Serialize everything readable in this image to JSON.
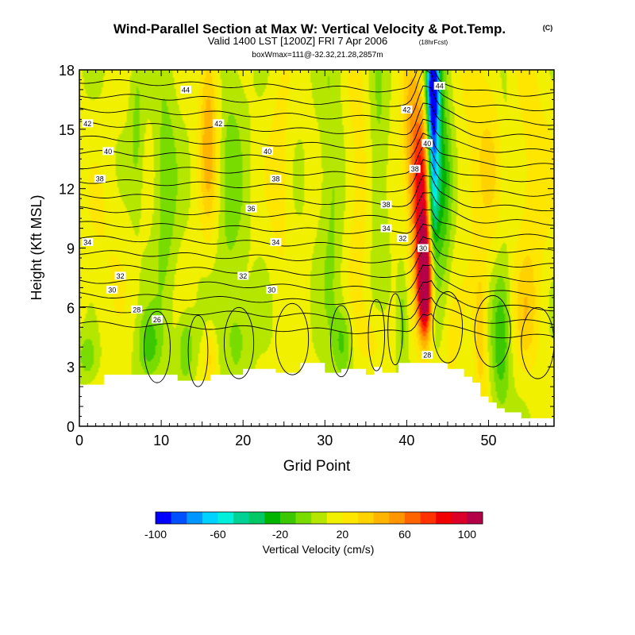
{
  "header": {
    "title": "Wind-Parallel Section at Max W: Vertical Velocity & Pot.Temp.",
    "title_mark": "(C)",
    "valid": "Valid 1400 LST [1200Z] FRI 7 Apr 2006",
    "fcst": "(18hrFcst)",
    "box_line": "boxWmax=111@-32.32,21.28,2857m"
  },
  "chart_data": {
    "type": "heatmap",
    "title": "Wind-Parallel Section at Max W: Vertical Velocity & Pot.Temp.",
    "xlabel": "Grid Point",
    "ylabel": "Height (Kft MSL)",
    "xlim": [
      0,
      58
    ],
    "ylim": [
      0,
      18
    ],
    "x_ticks": [
      0,
      10,
      20,
      30,
      40,
      50
    ],
    "y_ticks": [
      0,
      3,
      6,
      9,
      12,
      15,
      18
    ],
    "colorbar": {
      "label": "Vertical Velocity (cm/s)",
      "tick_labels": [
        "-100",
        "-60",
        "-20",
        "20",
        "60",
        "100"
      ],
      "tick_values": [
        -100,
        -60,
        -20,
        20,
        60,
        100
      ],
      "range": [
        -100,
        110
      ],
      "colors": [
        "#0000ff",
        "#0050ff",
        "#0096ff",
        "#00d2ff",
        "#00f0dc",
        "#00d296",
        "#00c864",
        "#00b400",
        "#3cc800",
        "#78dc00",
        "#b4e600",
        "#f0f000",
        "#ffe600",
        "#ffd200",
        "#ffb400",
        "#ff9600",
        "#ff6400",
        "#ff3200",
        "#f00000",
        "#dc0028",
        "#b40046"
      ]
    },
    "terrain": [
      [
        0,
        2.1
      ],
      [
        3,
        2.1
      ],
      [
        3,
        2.6
      ],
      [
        12,
        2.6
      ],
      [
        12,
        2.3
      ],
      [
        16,
        2.3
      ],
      [
        16,
        2.6
      ],
      [
        20,
        2.6
      ],
      [
        20,
        2.9
      ],
      [
        24,
        2.9
      ],
      [
        24,
        2.7
      ],
      [
        27,
        2.7
      ],
      [
        27,
        3.2
      ],
      [
        30,
        3.2
      ],
      [
        30,
        2.7
      ],
      [
        32,
        2.7
      ],
      [
        32,
        2.9
      ],
      [
        35,
        2.9
      ],
      [
        35,
        2.6
      ],
      [
        36,
        2.6
      ],
      [
        36,
        3.0
      ],
      [
        37,
        3.0
      ],
      [
        37,
        2.7
      ],
      [
        39,
        2.7
      ],
      [
        39,
        3.2
      ],
      [
        45,
        3.2
      ],
      [
        45,
        2.9
      ],
      [
        47,
        2.9
      ],
      [
        47,
        2.5
      ],
      [
        48,
        2.5
      ],
      [
        48,
        2.2
      ],
      [
        49,
        2.2
      ],
      [
        49,
        1.5
      ],
      [
        50,
        1.5
      ],
      [
        50,
        1.2
      ],
      [
        51,
        1.2
      ],
      [
        51,
        0.9
      ],
      [
        52,
        0.9
      ],
      [
        52,
        0.7
      ],
      [
        54,
        0.7
      ],
      [
        54,
        0.4
      ],
      [
        58,
        0.4
      ]
    ],
    "w_features": [
      {
        "x": 42.2,
        "y": 7.0,
        "sx": 0.6,
        "sy": 1.8,
        "w": 115
      },
      {
        "x": 42.0,
        "y": 9.5,
        "sx": 0.9,
        "sy": 2.2,
        "w": 40
      },
      {
        "x": 41.8,
        "y": 12.5,
        "sx": 0.9,
        "sy": 2.5,
        "w": 55
      },
      {
        "x": 40.6,
        "y": 15.0,
        "sx": 1.0,
        "sy": 3.0,
        "w": 30
      },
      {
        "x": 43.2,
        "y": 13.5,
        "sx": 0.5,
        "sy": 3.5,
        "w": -95
      },
      {
        "x": 43.2,
        "y": 17.3,
        "sx": 0.6,
        "sy": 1.5,
        "w": -80
      },
      {
        "x": 44.4,
        "y": 12.5,
        "sx": 0.8,
        "sy": 3.0,
        "w": -40
      },
      {
        "x": 15.8,
        "y": 15.0,
        "sx": 0.8,
        "sy": 3.5,
        "w": 35
      },
      {
        "x": 18.5,
        "y": 12.0,
        "sx": 1.2,
        "sy": 6.0,
        "w": -15
      },
      {
        "x": 10.5,
        "y": 12.0,
        "sx": 1.0,
        "sy": 5.0,
        "w": -18
      },
      {
        "x": 7.0,
        "y": 15.0,
        "sx": 0.6,
        "sy": 3.0,
        "w": -15
      },
      {
        "x": 30.8,
        "y": 12.0,
        "sx": 1.0,
        "sy": 5.5,
        "w": -15
      },
      {
        "x": 36.5,
        "y": 13.5,
        "sx": 0.8,
        "sy": 4.0,
        "w": -16
      },
      {
        "x": 24.5,
        "y": 13.0,
        "sx": 1.0,
        "sy": 4.0,
        "w": 14
      },
      {
        "x": 34.0,
        "y": 12.5,
        "sx": 1.2,
        "sy": 4.5,
        "w": 14
      },
      {
        "x": 49.5,
        "y": 13.5,
        "sx": 2.0,
        "sy": 4.0,
        "w": 18
      },
      {
        "x": 55.5,
        "y": 12.0,
        "sx": 1.5,
        "sy": 5.0,
        "w": 15
      },
      {
        "x": 52.0,
        "y": 14.0,
        "sx": 0.7,
        "sy": 4.0,
        "w": -10
      },
      {
        "x": 3.0,
        "y": 9.0,
        "sx": 2.0,
        "sy": 3.0,
        "w": 8
      },
      {
        "x": 8.5,
        "y": 4.0,
        "sx": 1.0,
        "sy": 1.2,
        "w": -25
      },
      {
        "x": 13.0,
        "y": 4.0,
        "sx": 0.7,
        "sy": 1.2,
        "w": -22
      },
      {
        "x": 16.0,
        "y": 3.5,
        "sx": 0.5,
        "sy": 1.0,
        "w": 20
      },
      {
        "x": 19.5,
        "y": 4.5,
        "sx": 1.2,
        "sy": 1.5,
        "w": -12
      },
      {
        "x": 32.2,
        "y": 4.3,
        "sx": 0.8,
        "sy": 1.2,
        "w": -25
      },
      {
        "x": 36.0,
        "y": 4.5,
        "sx": 1.5,
        "sy": 1.2,
        "w": 12
      },
      {
        "x": 39.5,
        "y": 5.5,
        "sx": 0.5,
        "sy": 2.0,
        "w": -20
      },
      {
        "x": 45.5,
        "y": 4.5,
        "sx": 0.7,
        "sy": 2.0,
        "w": 12
      },
      {
        "x": 49.0,
        "y": 4.5,
        "sx": 0.5,
        "sy": 2.5,
        "w": 25
      },
      {
        "x": 51.5,
        "y": 4.0,
        "sx": 0.8,
        "sy": 2.5,
        "w": -30
      },
      {
        "x": 54.5,
        "y": 5.5,
        "sx": 1.0,
        "sy": 2.0,
        "w": 18
      },
      {
        "x": 1.0,
        "y": 3.5,
        "sx": 0.8,
        "sy": 0.8,
        "w": -20
      }
    ],
    "theta_labels": [
      {
        "text": "44",
        "x": 44,
        "y": 0
      },
      {
        "text": "44",
        "x": 13,
        "y": 0
      },
      {
        "text": "42",
        "x": 1,
        "y": 0
      },
      {
        "text": "42",
        "x": 17,
        "y": 0
      },
      {
        "text": "42",
        "x": 40,
        "y": 0
      },
      {
        "text": "40",
        "x": 3.5,
        "y": 0
      },
      {
        "text": "40",
        "x": 23,
        "y": 0
      },
      {
        "text": "40",
        "x": 42.5,
        "y": 0
      },
      {
        "text": "38",
        "x": 2.5,
        "y": 0
      },
      {
        "text": "38",
        "x": 24,
        "y": 0
      },
      {
        "text": "38",
        "x": 37.5,
        "y": 0
      },
      {
        "text": "38",
        "x": 41,
        "y": 0
      },
      {
        "text": "36",
        "x": 21,
        "y": 0
      },
      {
        "text": "34",
        "x": 1,
        "y": 0
      },
      {
        "text": "34",
        "x": 24,
        "y": 0
      },
      {
        "text": "34",
        "x": 37.5,
        "y": 0
      },
      {
        "text": "32",
        "x": 5,
        "y": 0
      },
      {
        "text": "32",
        "x": 20,
        "y": 0
      },
      {
        "text": "32",
        "x": 39.5,
        "y": 0
      },
      {
        "text": "30",
        "x": 4,
        "y": 0
      },
      {
        "text": "30",
        "x": 23.5,
        "y": 0
      },
      {
        "text": "30",
        "x": 42,
        "y": 0
      },
      {
        "text": "28",
        "x": 7,
        "y": 0
      },
      {
        "text": "28",
        "x": 42.5,
        "y": 0
      },
      {
        "text": "26",
        "x": 9.5,
        "y": 0
      }
    ]
  }
}
